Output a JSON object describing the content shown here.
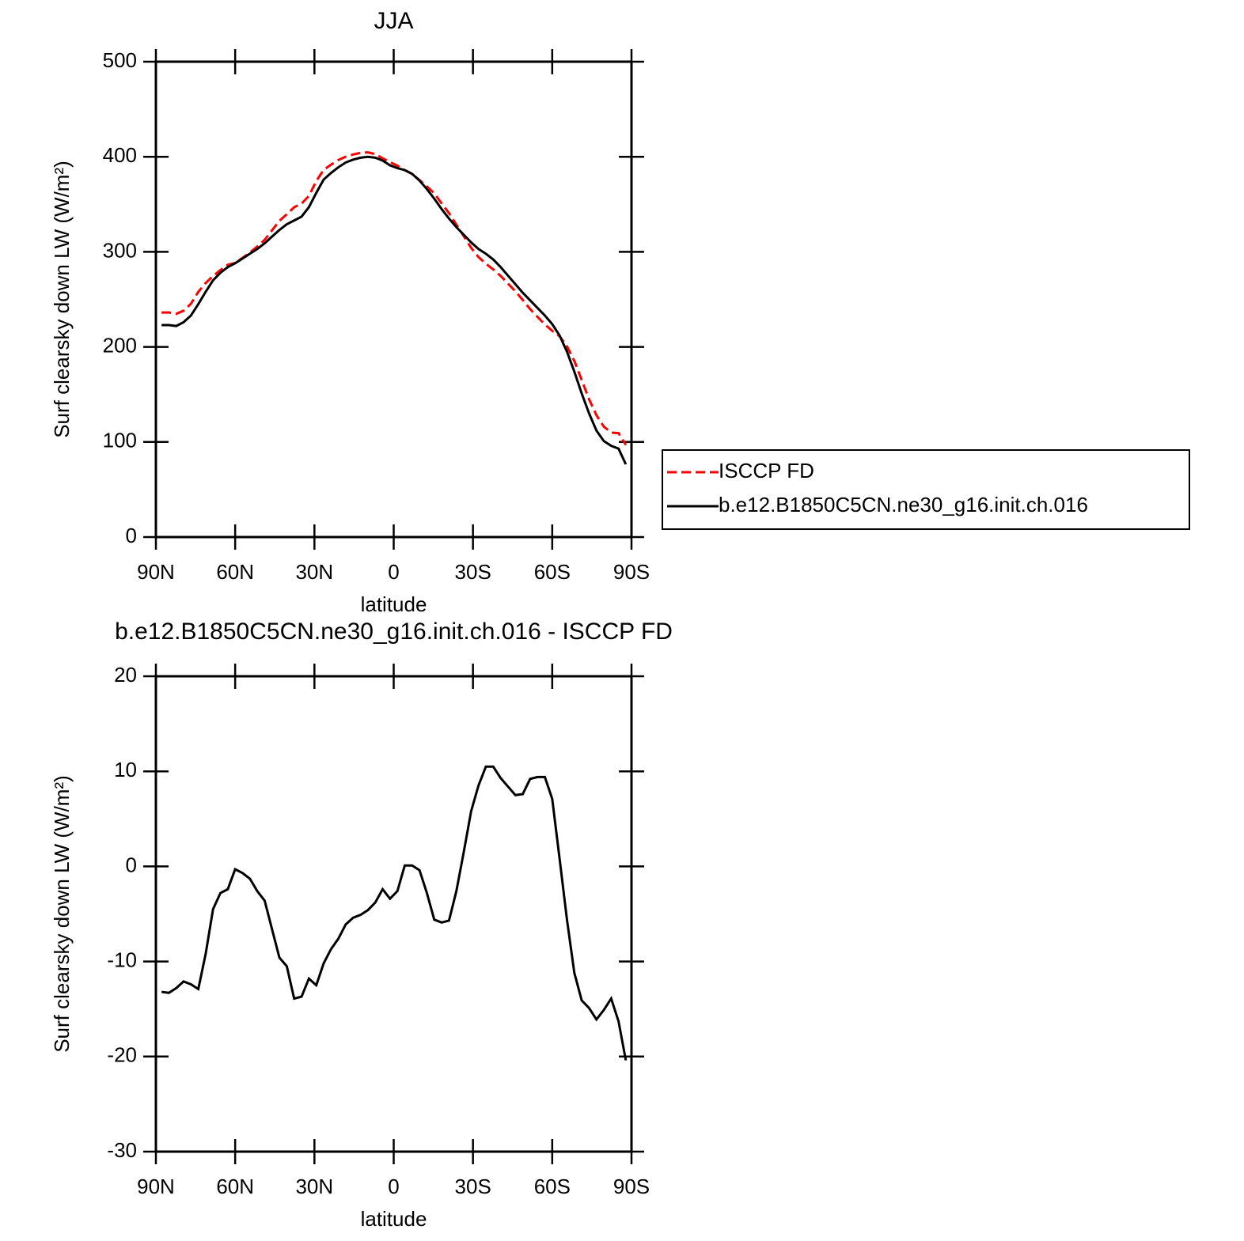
{
  "chart_data": [
    {
      "type": "line",
      "title": "JJA",
      "xlabel": "latitude",
      "ylabel": "Surf clearsky down LW (W/m²)",
      "x": [
        87.86,
        85.1,
        82.31,
        79.53,
        76.74,
        73.95,
        71.16,
        68.37,
        65.58,
        62.79,
        60.0,
        57.21,
        54.42,
        51.63,
        48.84,
        46.05,
        43.25,
        40.46,
        37.67,
        34.88,
        32.09,
        29.3,
        26.51,
        23.72,
        20.93,
        18.14,
        15.35,
        12.56,
        9.77,
        6.98,
        4.19,
        1.4,
        -1.4,
        -4.19,
        -6.98,
        -9.77,
        -12.56,
        -15.35,
        -18.14,
        -20.93,
        -23.72,
        -26.51,
        -29.3,
        -32.09,
        -34.88,
        -37.67,
        -40.46,
        -43.25,
        -46.05,
        -48.84,
        -51.63,
        -54.42,
        -57.21,
        -60.0,
        -62.79,
        -65.58,
        -68.37,
        -71.16,
        -73.95,
        -76.74,
        -79.53,
        -82.31,
        -85.1,
        -87.86
      ],
      "series": [
        {
          "name": "ISCCP FD",
          "color": "#ff0000",
          "style": "dashed",
          "values": [
            236.2,
            236.3,
            234.8,
            238.1,
            245.4,
            257.9,
            267.2,
            274.5,
            280.8,
            286.4,
            288.3,
            293.7,
            299.3,
            305.6,
            312.6,
            322.6,
            332.6,
            339.5,
            346.9,
            350.7,
            358.8,
            374.5,
            386.2,
            391.7,
            396.6,
            400.1,
            402.4,
            404.1,
            404.6,
            402.8,
            398.4,
            394.4,
            390.6,
            385.9,
            381.9,
            375.4,
            368.8,
            361.6,
            350.9,
            340.7,
            328.6,
            316.5,
            304.2,
            294.5,
            287.5,
            281.5,
            274.7,
            266.6,
            258.5,
            249.4,
            239.8,
            231.6,
            223.6,
            216.9,
            211.2,
            200.6,
            185.2,
            165.1,
            144.9,
            128.1,
            116.1,
            109.9,
            109.3,
            96.9
          ]
        },
        {
          "name": "b.e12.B1850C5CN.ne30_g16.init.ch.016",
          "color": "#000000",
          "style": "solid",
          "values": [
            223,
            223,
            222,
            226,
            233,
            245,
            258,
            270,
            278,
            284,
            288,
            293,
            298,
            303,
            309,
            316,
            323,
            329,
            333,
            337,
            347,
            362,
            376,
            383,
            389,
            394,
            397,
            399,
            400,
            399,
            396,
            391,
            388,
            386,
            382,
            375,
            366,
            356,
            345,
            335,
            326,
            318,
            310,
            303,
            298,
            292,
            284,
            275,
            266,
            257,
            249,
            241,
            233,
            224,
            212,
            195,
            174,
            151,
            130,
            112,
            101,
            96,
            93,
            76.5
          ]
        }
      ],
      "xlim": [
        90,
        -90
      ],
      "ylim": [
        0,
        500
      ],
      "xticks": [
        {
          "value": 90,
          "label": "90N"
        },
        {
          "value": 60,
          "label": "60N"
        },
        {
          "value": 30,
          "label": "30N"
        },
        0,
        {
          "value": -30,
          "label": "30S"
        },
        {
          "value": -60,
          "label": "60S"
        },
        {
          "value": -90,
          "label": "90S"
        }
      ],
      "yticks": [
        0,
        100,
        200,
        300,
        400,
        500
      ],
      "legend": "right"
    },
    {
      "type": "line",
      "title": "b.e12.B1850C5CN.ne30_g16.init.ch.016 - ISCCP FD",
      "xlabel": "latitude",
      "ylabel": "Surf clearsky down LW (W/m²)",
      "x": [
        87.86,
        85.1,
        82.31,
        79.53,
        76.74,
        73.95,
        71.16,
        68.37,
        65.58,
        62.79,
        60.0,
        57.21,
        54.42,
        51.63,
        48.84,
        46.05,
        43.25,
        40.46,
        37.67,
        34.88,
        32.09,
        29.3,
        26.51,
        23.72,
        20.93,
        18.14,
        15.35,
        12.56,
        9.77,
        6.98,
        4.19,
        1.4,
        -1.4,
        -4.19,
        -6.98,
        -9.77,
        -12.56,
        -15.35,
        -18.14,
        -20.93,
        -23.72,
        -26.51,
        -29.3,
        -32.09,
        -34.88,
        -37.67,
        -40.46,
        -43.25,
        -46.05,
        -48.84,
        -51.63,
        -54.42,
        -57.21,
        -60.0,
        -62.79,
        -65.58,
        -68.37,
        -71.16,
        -73.95,
        -76.74,
        -79.53,
        -82.31,
        -85.1,
        -87.86
      ],
      "series": [
        {
          "color": "#000000",
          "style": "solid",
          "values": [
            -13.2,
            -13.3,
            -12.8,
            -12.1,
            -12.4,
            -12.9,
            -9.2,
            -4.5,
            -2.8,
            -2.4,
            -0.3,
            -0.7,
            -1.3,
            -2.6,
            -3.6,
            -6.6,
            -9.6,
            -10.5,
            -13.9,
            -13.7,
            -11.8,
            -12.5,
            -10.2,
            -8.7,
            -7.6,
            -6.1,
            -5.4,
            -5.1,
            -4.6,
            -3.8,
            -2.4,
            -3.4,
            -2.6,
            0.1,
            0.1,
            -0.4,
            -2.8,
            -5.6,
            -5.9,
            -5.7,
            -2.6,
            1.5,
            5.8,
            8.5,
            10.5,
            10.5,
            9.3,
            8.4,
            7.5,
            7.6,
            9.2,
            9.4,
            9.4,
            7.1,
            0.8,
            -5.6,
            -11.2,
            -14.1,
            -14.9,
            -16.1,
            -15.1,
            -13.9,
            -16.3,
            -20.4
          ]
        }
      ],
      "xlim": [
        90,
        -90
      ],
      "ylim": [
        -30,
        20
      ],
      "xticks": [
        {
          "value": 90,
          "label": "90N"
        },
        {
          "value": 60,
          "label": "60N"
        },
        {
          "value": 30,
          "label": "30N"
        },
        0,
        {
          "value": -30,
          "label": "30S"
        },
        {
          "value": -60,
          "label": "60S"
        },
        {
          "value": -90,
          "label": "90S"
        }
      ],
      "yticks": [
        -30,
        -20,
        -10,
        0,
        10,
        20
      ]
    }
  ]
}
